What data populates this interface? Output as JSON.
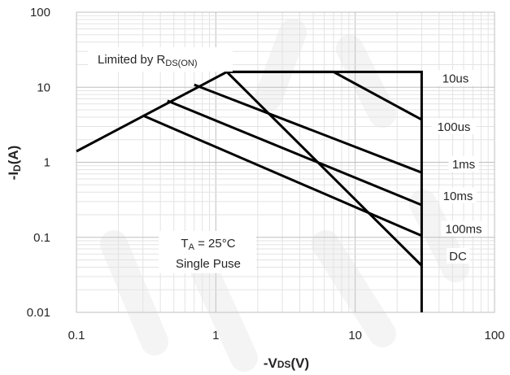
{
  "chart_data": {
    "type": "line",
    "xscale": "log",
    "yscale": "log",
    "xlim": [
      0.1,
      100
    ],
    "ylim": [
      0.01,
      100
    ],
    "grid": true,
    "xlabel": {
      "prefix": "-V",
      "sub": "DS",
      "suffix": "(V)"
    },
    "ylabel": {
      "prefix": "-I",
      "sub": "D",
      "suffix": "(A)"
    },
    "x_ticks": [
      "0.1",
      "1",
      "10",
      "100"
    ],
    "y_ticks": [
      "0.01",
      "0.1",
      "1",
      "10",
      "100"
    ],
    "annotations": {
      "rds_prefix": "Limited by R",
      "rds_sub": "DS(ON)",
      "ta_prefix": "T",
      "ta_sub": "A",
      "ta_suffix": " = 25°C",
      "pulse": "Single Puse"
    },
    "series": [
      {
        "label": "10us",
        "points": [
          [
            1.2,
            16
          ],
          [
            30,
            16
          ],
          [
            30,
            0.01
          ]
        ]
      },
      {
        "label": "100us",
        "points": [
          [
            1.3,
            16
          ],
          [
            7,
            16
          ],
          [
            30,
            3.7
          ]
        ]
      },
      {
        "label": "1ms",
        "points": [
          [
            0.7,
            10.8
          ],
          [
            30,
            0.73
          ]
        ]
      },
      {
        "label": "10ms",
        "points": [
          [
            0.45,
            6.6
          ],
          [
            30,
            0.27
          ]
        ]
      },
      {
        "label": "100ms",
        "points": [
          [
            0.3,
            4.2
          ],
          [
            30,
            0.105
          ]
        ]
      },
      {
        "label": "DC",
        "points": [
          [
            0.1,
            1.4
          ],
          [
            1.2,
            16
          ],
          [
            30,
            0.042
          ]
        ]
      }
    ]
  }
}
